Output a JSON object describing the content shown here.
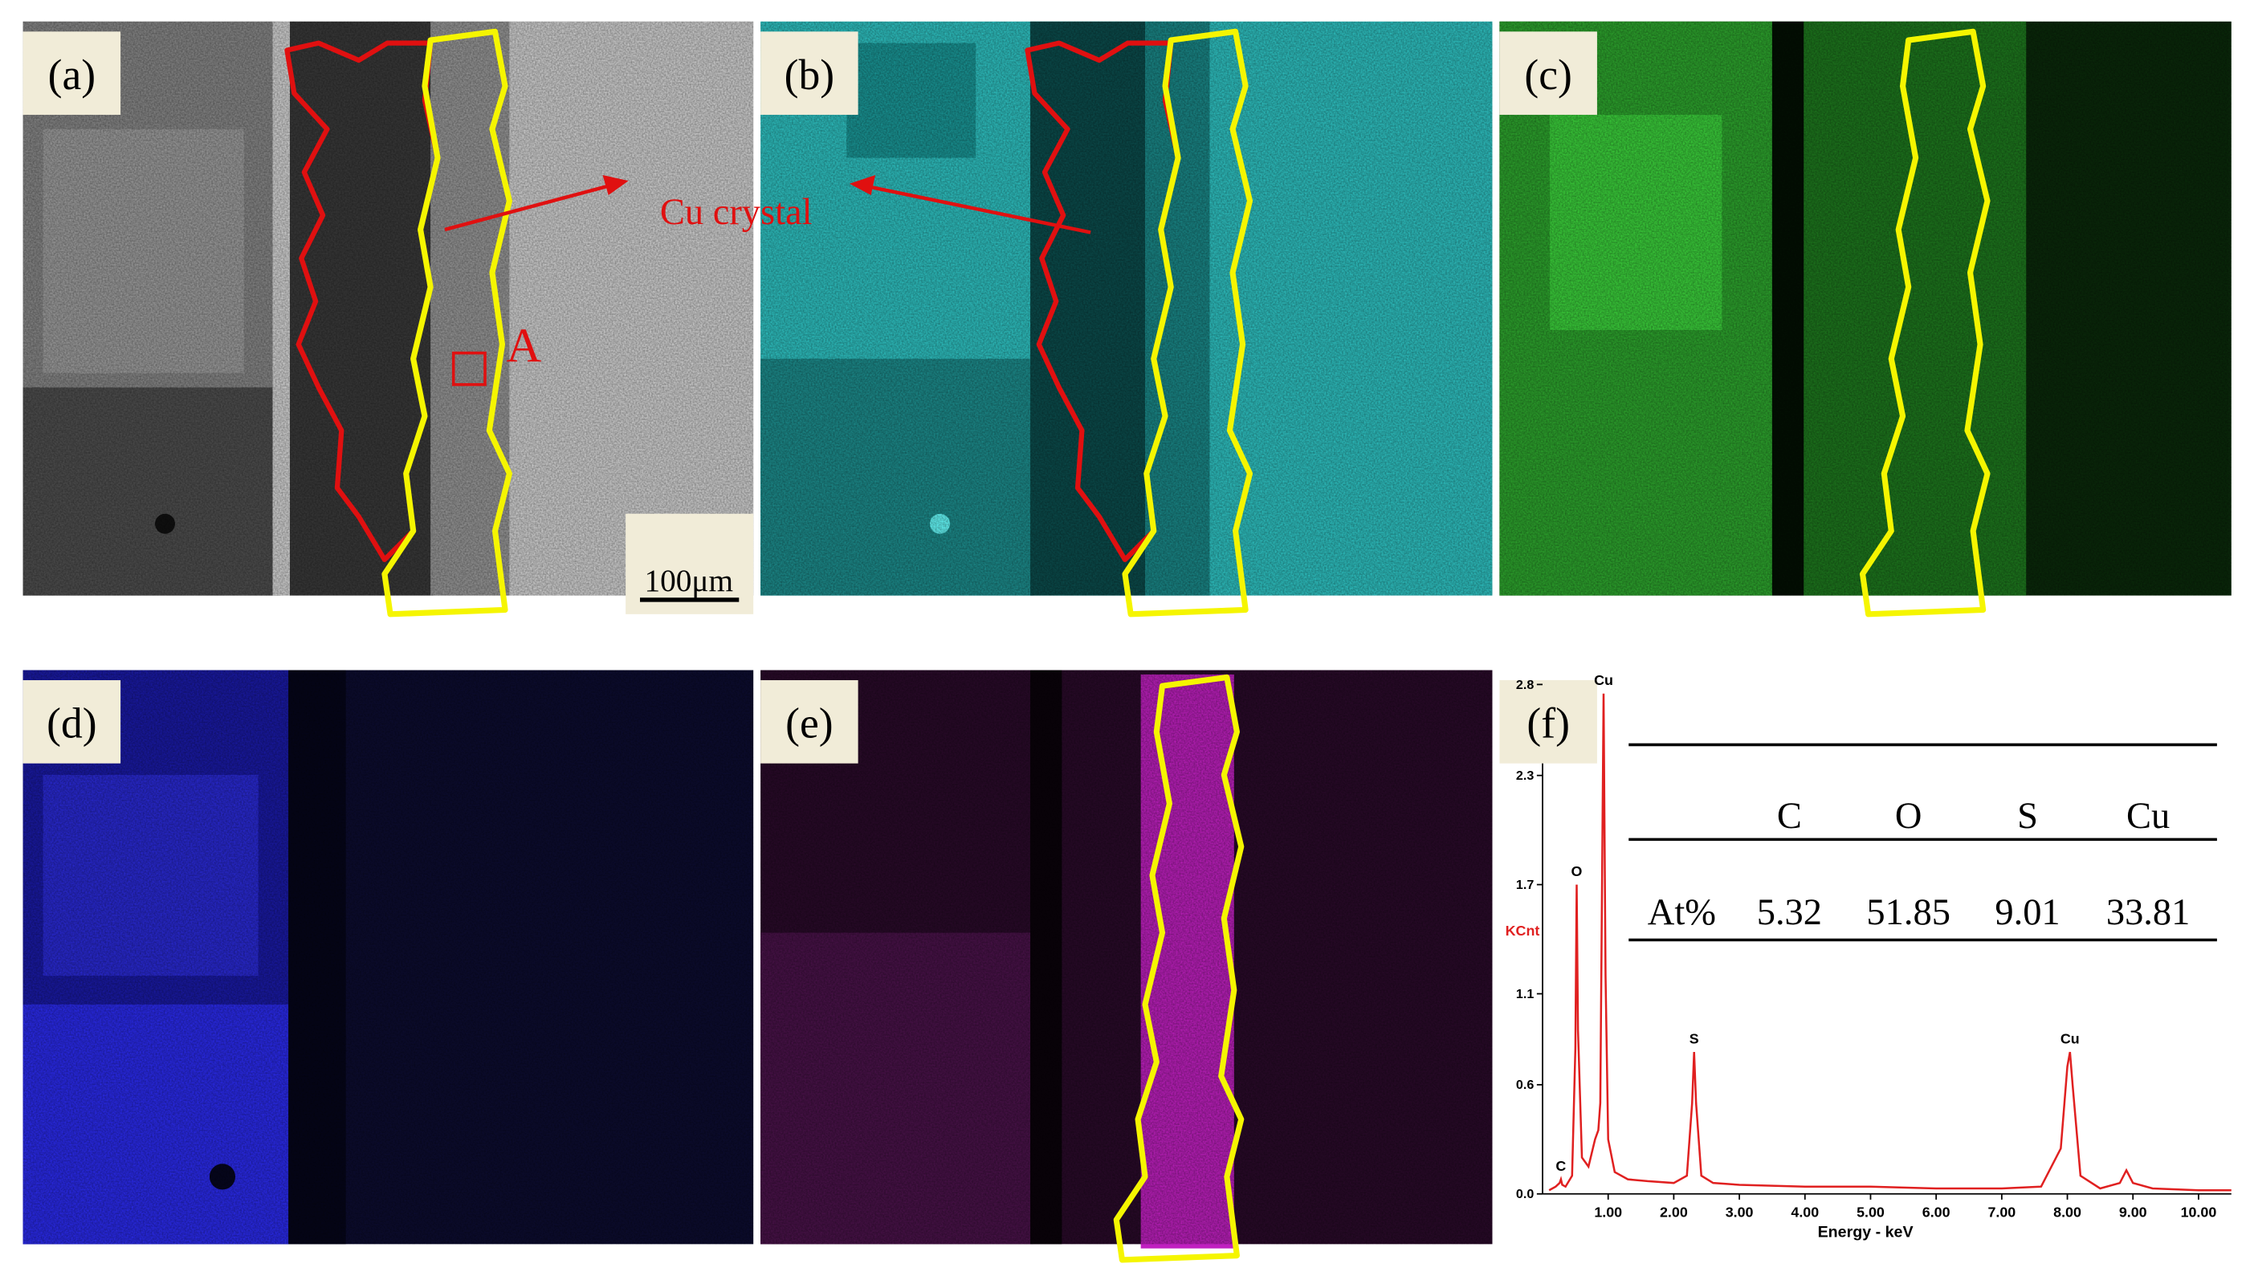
{
  "panels": [
    {
      "label": "(a)"
    },
    {
      "label": "(b)"
    },
    {
      "label": "(c)"
    },
    {
      "label": "(d)"
    },
    {
      "label": "(e)"
    },
    {
      "label": "(f)"
    }
  ],
  "annotations": {
    "cu_crystal": "Cu crystal",
    "point": "A",
    "scale_bar": "100μm"
  },
  "table": {
    "header": [
      "C",
      "O",
      "S",
      "Cu"
    ],
    "rows": [
      [
        "At%",
        5.32,
        51.85,
        9.01,
        33.81
      ]
    ]
  },
  "chart_data": {
    "type": "line",
    "ylabel": "KCnt",
    "xlabel": "Energy - keV",
    "xlim": [
      0,
      10.5
    ],
    "ylim": [
      0,
      2.8
    ],
    "xticks": [
      {
        "value": 1,
        "label": "1.00"
      },
      {
        "value": 2,
        "label": "2.00"
      },
      {
        "value": 3,
        "label": "3.00"
      },
      {
        "value": 4,
        "label": "4.00"
      },
      {
        "value": 5,
        "label": "5.00"
      },
      {
        "value": 6,
        "label": "6.00"
      },
      {
        "value": 7,
        "label": "7.00"
      },
      {
        "value": 8,
        "label": "8.00"
      },
      {
        "value": 9,
        "label": "9.00"
      },
      {
        "value": 10,
        "label": "10.00"
      }
    ],
    "yticks": [
      {
        "value": 0,
        "label": "0.0"
      },
      0.6,
      1.1,
      1.7,
      2.3,
      2.8
    ],
    "series": [
      {
        "color": "#e02020",
        "x": [
          0.1,
          0.2,
          0.26,
          0.28,
          0.3,
          0.35,
          0.45,
          0.5,
          0.52,
          0.54,
          0.6,
          0.7,
          0.8,
          0.85,
          0.88,
          0.93,
          0.96,
          1.0,
          1.1,
          1.3,
          1.6,
          2.0,
          2.2,
          2.28,
          2.31,
          2.34,
          2.42,
          2.6,
          3.0,
          4.0,
          5.0,
          6.0,
          7.0,
          7.6,
          7.9,
          8.0,
          8.04,
          8.08,
          8.2,
          8.5,
          8.8,
          8.9,
          9.0,
          9.3,
          10.0,
          10.5
        ],
        "values": [
          0.02,
          0.04,
          0.06,
          0.08,
          0.05,
          0.04,
          0.1,
          0.8,
          1.7,
          0.9,
          0.2,
          0.15,
          0.3,
          0.35,
          0.5,
          2.75,
          1.2,
          0.3,
          0.12,
          0.08,
          0.07,
          0.06,
          0.1,
          0.5,
          0.78,
          0.5,
          0.1,
          0.06,
          0.05,
          0.04,
          0.04,
          0.03,
          0.03,
          0.04,
          0.25,
          0.7,
          0.78,
          0.6,
          0.1,
          0.03,
          0.06,
          0.13,
          0.06,
          0.03,
          0.02,
          0.02
        ]
      }
    ],
    "peak_labels": [
      {
        "text": "C",
        "x": 0.28,
        "y": 0.08
      },
      {
        "text": "O",
        "x": 0.52,
        "y": 1.7
      },
      {
        "text": "Cu",
        "x": 0.93,
        "y": 2.75
      },
      {
        "text": "S",
        "x": 2.31,
        "y": 0.78
      },
      {
        "text": "Cu",
        "x": 8.04,
        "y": 0.78
      }
    ]
  }
}
